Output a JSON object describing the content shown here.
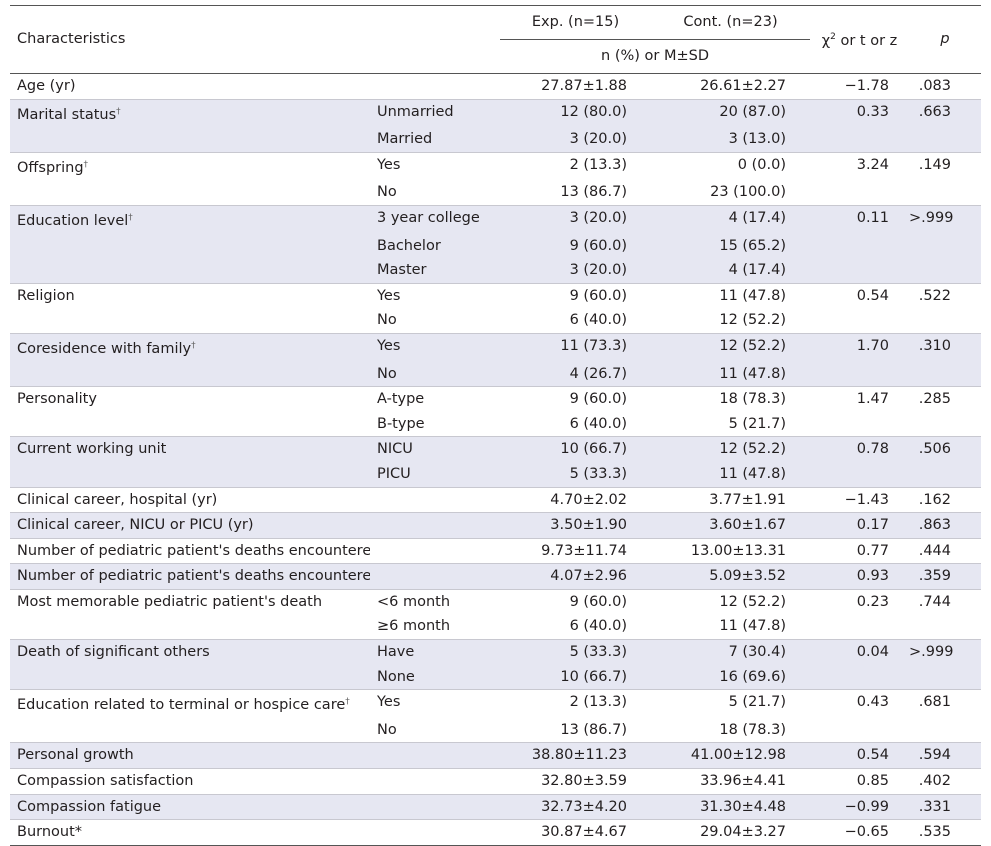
{
  "header": {
    "characteristics": "Characteristics",
    "exp": "Exp. (n=15)",
    "cont": "Cont. (n=23)",
    "subheader": "n (%) or M±SD",
    "stat_chi": "χ",
    "stat_sup": "2",
    "stat_rest": " or t or z",
    "p": "p"
  },
  "groups": [
    {
      "label": "Age (yr)",
      "mark": "",
      "rows": [
        {
          "cat": "",
          "exp": "27.87±1.88",
          "cont": "26.61±2.27"
        }
      ],
      "stat": "−1.78",
      "p": ".083"
    },
    {
      "label": "Marital status",
      "mark": "†",
      "rows": [
        {
          "cat": "Unmarried",
          "exp": "12 (80.0)",
          "cont": "20 (87.0)"
        },
        {
          "cat": "Married",
          "exp": "3 (20.0)",
          "cont": "3 (13.0)"
        }
      ],
      "stat": "0.33",
      "p": ".663"
    },
    {
      "label": "Offspring",
      "mark": "†",
      "rows": [
        {
          "cat": "Yes",
          "exp": "2 (13.3)",
          "cont": "0 (0.0)"
        },
        {
          "cat": "No",
          "exp": "13 (86.7)",
          "cont": "23 (100.0)"
        }
      ],
      "stat": "3.24",
      "p": ".149"
    },
    {
      "label": "Education level",
      "mark": "†",
      "rows": [
        {
          "cat": "3 year college",
          "exp": "3 (20.0)",
          "cont": "4 (17.4)"
        },
        {
          "cat": "Bachelor",
          "exp": "9 (60.0)",
          "cont": "15 (65.2)"
        },
        {
          "cat": "Master",
          "exp": "3 (20.0)",
          "cont": "4 (17.4)"
        }
      ],
      "stat": "0.11",
      "p": ">.999"
    },
    {
      "label": "Religion",
      "mark": "",
      "rows": [
        {
          "cat": "Yes",
          "exp": "9 (60.0)",
          "cont": "11 (47.8)"
        },
        {
          "cat": "No",
          "exp": "6 (40.0)",
          "cont": "12 (52.2)"
        }
      ],
      "stat": "0.54",
      "p": ".522"
    },
    {
      "label": "Coresidence with family",
      "mark": "†",
      "rows": [
        {
          "cat": "Yes",
          "exp": "11 (73.3)",
          "cont": "12 (52.2)"
        },
        {
          "cat": "No",
          "exp": "4 (26.7)",
          "cont": "11 (47.8)"
        }
      ],
      "stat": "1.70",
      "p": ".310"
    },
    {
      "label": "Personality",
      "mark": "",
      "rows": [
        {
          "cat": "A-type",
          "exp": "9 (60.0)",
          "cont": "18 (78.3)"
        },
        {
          "cat": "B-type",
          "exp": "6 (40.0)",
          "cont": "5 (21.7)"
        }
      ],
      "stat": "1.47",
      "p": ".285"
    },
    {
      "label": "Current working unit",
      "mark": "",
      "rows": [
        {
          "cat": "NICU",
          "exp": "10 (66.7)",
          "cont": "12 (52.2)"
        },
        {
          "cat": "PICU",
          "exp": "5 (33.3)",
          "cont": "11 (47.8)"
        }
      ],
      "stat": "0.78",
      "p": ".506"
    },
    {
      "label": "Clinical career, hospital (yr)",
      "mark": "",
      "rows": [
        {
          "cat": "",
          "exp": "4.70±2.02",
          "cont": "3.77±1.91"
        }
      ],
      "stat": "−1.43",
      "p": ".162"
    },
    {
      "label": "Clinical career, NICU or PICU (yr)",
      "mark": "",
      "rows": [
        {
          "cat": "",
          "exp": "3.50±1.90",
          "cont": "3.60±1.67"
        }
      ],
      "stat": "0.17",
      "p": ".863"
    },
    {
      "label": "Number of pediatric patient's deaths encountered during their career",
      "mark": "",
      "rows": [
        {
          "cat": "",
          "exp": "9.73±11.74",
          "cont": "13.00±13.31"
        }
      ],
      "stat": "0.77",
      "p": ".444"
    },
    {
      "label": "Number of pediatric patient's deaths encountered during last year",
      "mark": "",
      "rows": [
        {
          "cat": "",
          "exp": "4.07±2.96",
          "cont": "5.09±3.52"
        }
      ],
      "stat": "0.93",
      "p": ".359"
    },
    {
      "label": "Most memorable pediatric patient's death",
      "mark": "",
      "rows": [
        {
          "cat": "<6 month",
          "exp": "9 (60.0)",
          "cont": "12 (52.2)"
        },
        {
          "cat": "≥6 month",
          "exp": "6 (40.0)",
          "cont": "11 (47.8)"
        }
      ],
      "stat": "0.23",
      "p": ".744"
    },
    {
      "label": "Death of significant others",
      "mark": "",
      "rows": [
        {
          "cat": "Have",
          "exp": "5 (33.3)",
          "cont": "7 (30.4)"
        },
        {
          "cat": "None",
          "exp": "10 (66.7)",
          "cont": "16 (69.6)"
        }
      ],
      "stat": "0.04",
      "p": ">.999"
    },
    {
      "label": "Education related to terminal or hospice care",
      "mark": "†",
      "rows": [
        {
          "cat": "Yes",
          "exp": "2 (13.3)",
          "cont": "5 (21.7)"
        },
        {
          "cat": "No",
          "exp": "13 (86.7)",
          "cont": "18 (78.3)"
        }
      ],
      "stat": "0.43",
      "p": ".681"
    },
    {
      "label": "Personal growth",
      "mark": "",
      "rows": [
        {
          "cat": "",
          "exp": "38.80±11.23",
          "cont": "41.00±12.98"
        }
      ],
      "stat": "0.54",
      "p": ".594"
    },
    {
      "label": "Compassion satisfaction",
      "mark": "",
      "rows": [
        {
          "cat": "",
          "exp": "32.80±3.59",
          "cont": "33.96±4.41"
        }
      ],
      "stat": "0.85",
      "p": ".402"
    },
    {
      "label": "Compassion fatigue",
      "mark": "",
      "rows": [
        {
          "cat": "",
          "exp": "32.73±4.20",
          "cont": "31.30±4.48"
        }
      ],
      "stat": "−0.99",
      "p": ".331"
    },
    {
      "label": "Burnout*",
      "mark": "",
      "rows": [
        {
          "cat": "",
          "exp": "30.87±4.67",
          "cont": "29.04±3.27"
        }
      ],
      "stat": "−0.65",
      "p": ".535"
    }
  ]
}
